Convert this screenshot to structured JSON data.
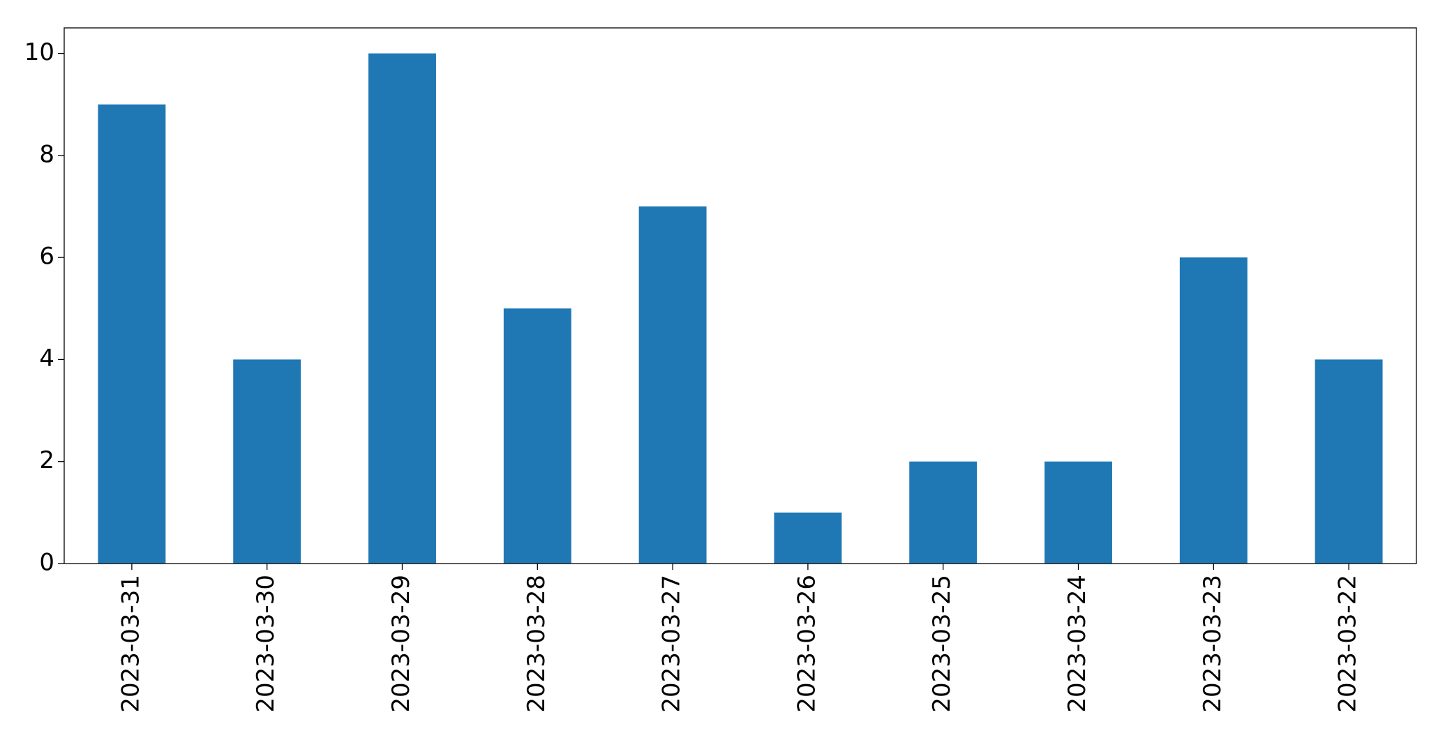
{
  "chart_data": {
    "type": "bar",
    "categories": [
      "2023-03-31",
      "2023-03-30",
      "2023-03-29",
      "2023-03-28",
      "2023-03-27",
      "2023-03-26",
      "2023-03-25",
      "2023-03-24",
      "2023-03-23",
      "2023-03-22"
    ],
    "values": [
      9,
      4,
      10,
      5,
      7,
      1,
      2,
      2,
      6,
      4
    ],
    "color": "#1f77b4",
    "ylim": [
      0,
      10.5
    ],
    "yticks": [
      0,
      2,
      4,
      6,
      8,
      10
    ],
    "grid": false
  }
}
